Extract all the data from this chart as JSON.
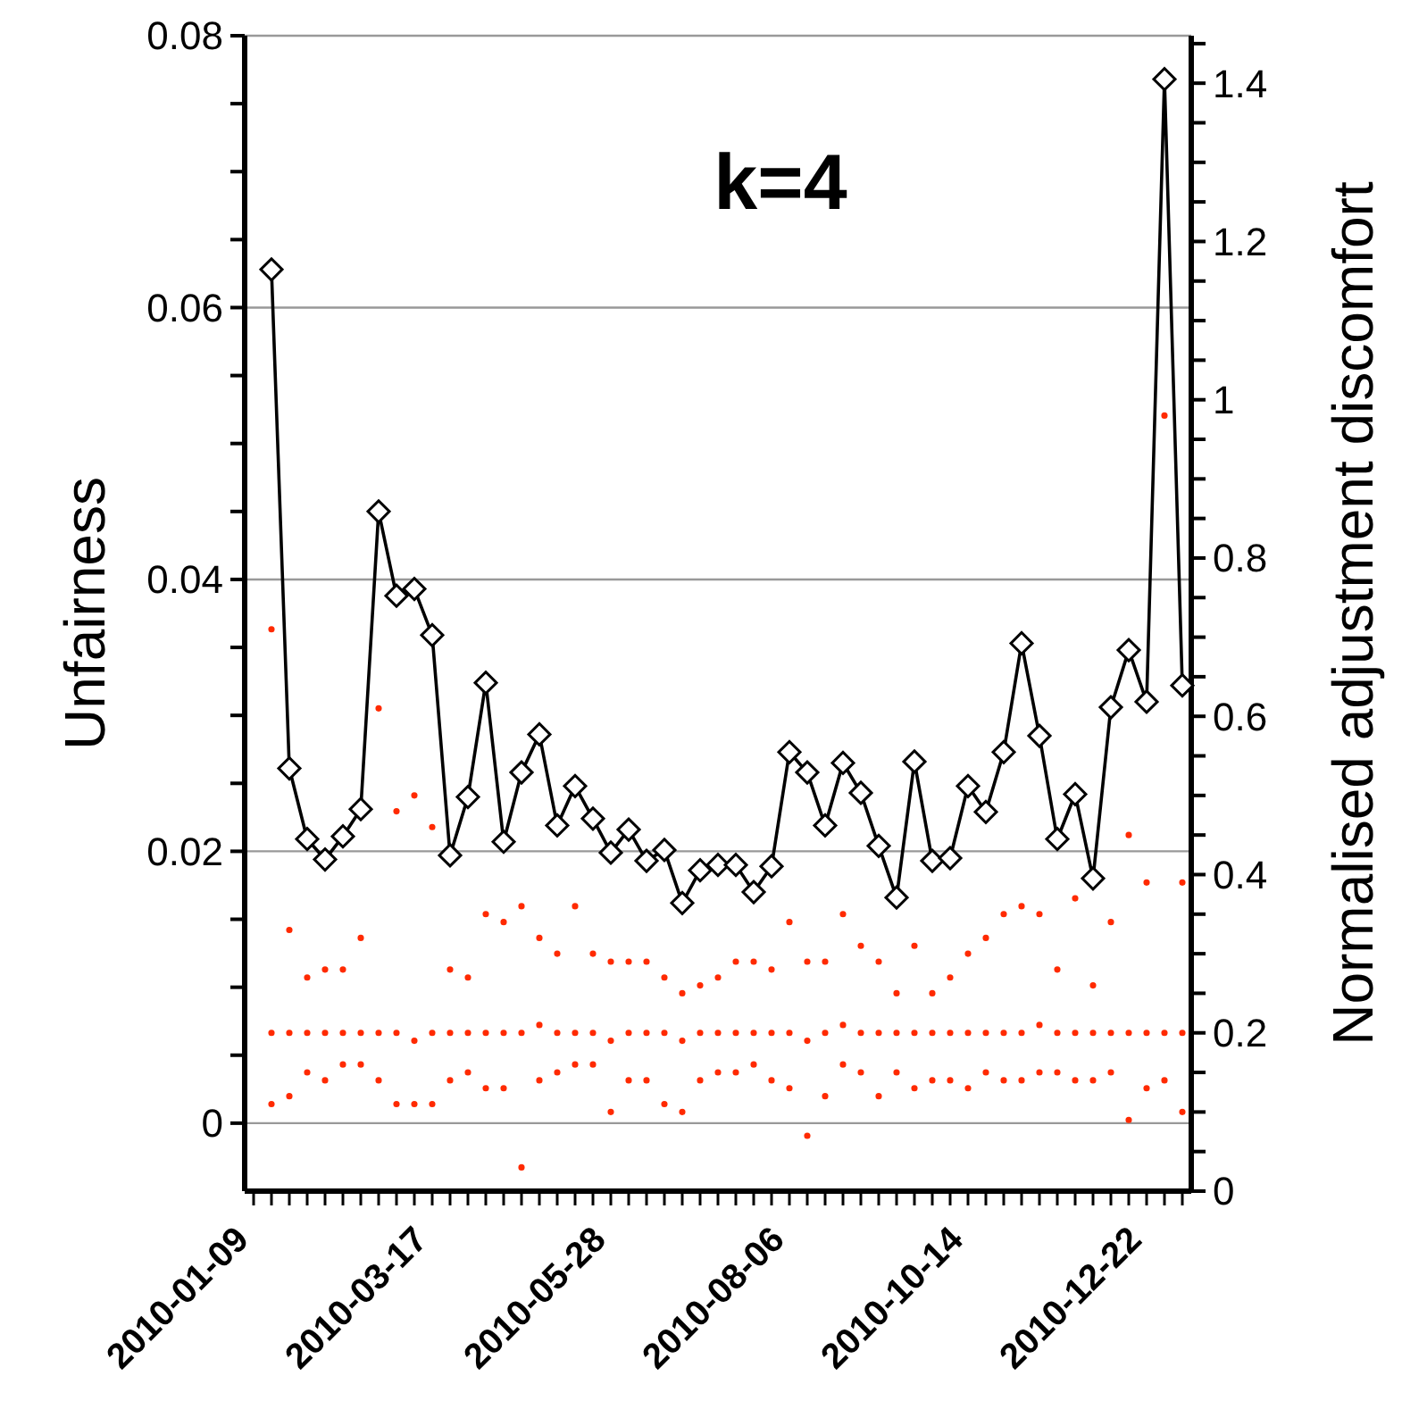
{
  "chart_data": {
    "type": "line",
    "title": "k=4",
    "ylabel": "Unfairness",
    "y2label": "Normalised adjustment discomfort",
    "grid": "y",
    "legend": false,
    "categories": [
      "2010-01-09",
      null,
      null,
      null,
      null,
      null,
      null,
      null,
      null,
      null,
      "2010-03-17",
      null,
      null,
      null,
      null,
      null,
      null,
      null,
      null,
      null,
      "2010-05-28",
      null,
      null,
      null,
      null,
      null,
      null,
      null,
      null,
      null,
      "2010-08-06",
      null,
      null,
      null,
      null,
      null,
      null,
      null,
      null,
      null,
      "2010-10-14",
      null,
      null,
      null,
      null,
      null,
      null,
      null,
      null,
      null,
      "2010-12-22",
      null,
      null
    ],
    "ylim": [
      -0.005,
      0.08
    ],
    "yticks": [
      0,
      {
        "value": 0.005,
        "label": null
      },
      {
        "value": 0.01,
        "label": null
      },
      {
        "value": 0.015,
        "label": null
      },
      0.02,
      {
        "value": 0.025,
        "label": null
      },
      {
        "value": 0.03,
        "label": null
      },
      {
        "value": 0.035,
        "label": null
      },
      0.04,
      {
        "value": 0.045,
        "label": null
      },
      {
        "value": 0.05,
        "label": null
      },
      {
        "value": 0.055,
        "label": null
      },
      0.06,
      {
        "value": 0.065,
        "label": null
      },
      {
        "value": 0.07,
        "label": null
      },
      {
        "value": 0.075,
        "label": null
      },
      0.08
    ],
    "y2lim": [
      0,
      1.46
    ],
    "y2ticks": [
      0,
      {
        "value": 0.05,
        "label": null
      },
      {
        "value": 0.1,
        "label": null
      },
      {
        "value": 0.15,
        "label": null
      },
      0.2,
      {
        "value": 0.25,
        "label": null
      },
      {
        "value": 0.3,
        "label": null
      },
      {
        "value": 0.35,
        "label": null
      },
      0.4,
      {
        "value": 0.45,
        "label": null
      },
      {
        "value": 0.5,
        "label": null
      },
      {
        "value": 0.55,
        "label": null
      },
      0.6,
      {
        "value": 0.65,
        "label": null
      },
      {
        "value": 0.7,
        "label": null
      },
      {
        "value": 0.75,
        "label": null
      },
      0.8,
      {
        "value": 0.85,
        "label": null
      },
      {
        "value": 0.9,
        "label": null
      },
      {
        "value": 0.95,
        "label": null
      },
      1,
      {
        "value": 1.05,
        "label": null
      },
      {
        "value": 1.1,
        "label": null
      },
      {
        "value": 1.15,
        "label": null
      },
      1.2,
      {
        "value": 1.25,
        "label": null
      },
      {
        "value": 1.3,
        "label": null
      },
      {
        "value": 1.35,
        "label": null
      },
      1.4,
      {
        "value": 1.45,
        "label": null
      }
    ],
    "series": [
      {
        "type": "scatter",
        "axis": "y2",
        "color": "#ff2a00",
        "marker": "circle",
        "values": [
          null,
          0.71,
          0.33,
          0.27,
          0.28,
          0.28,
          0.32,
          0.61,
          0.48,
          0.5,
          0.46,
          0.28,
          0.27,
          0.35,
          0.34,
          0.36,
          0.32,
          0.3,
          0.36,
          0.3,
          0.29,
          0.29,
          0.29,
          0.27,
          0.25,
          0.26,
          0.27,
          0.29,
          0.29,
          0.28,
          0.34,
          0.29,
          0.29,
          0.35,
          0.31,
          0.29,
          0.25,
          0.31,
          0.25,
          0.27,
          0.3,
          0.32,
          0.35,
          0.36,
          0.35,
          0.28,
          0.37,
          0.26,
          0.34,
          0.45,
          0.39,
          0.98,
          0.39
        ]
      },
      {
        "type": "scatter",
        "axis": "y2",
        "color": "#ff2a00",
        "marker": "circle",
        "values": [
          null,
          0.2,
          0.2,
          0.2,
          0.2,
          0.2,
          0.2,
          0.2,
          0.2,
          0.19,
          0.2,
          0.2,
          0.2,
          0.2,
          0.2,
          0.2,
          0.21,
          0.2,
          0.2,
          0.2,
          0.19,
          0.2,
          0.2,
          0.2,
          0.19,
          0.2,
          0.2,
          0.2,
          0.2,
          0.2,
          0.2,
          0.19,
          0.2,
          0.21,
          0.2,
          0.2,
          0.2,
          0.2,
          0.2,
          0.2,
          0.2,
          0.2,
          0.2,
          0.2,
          0.21,
          0.2,
          0.2,
          0.2,
          0.2,
          0.2,
          0.2,
          0.2,
          0.2
        ]
      },
      {
        "type": "scatter",
        "axis": "y2",
        "color": "#ff2a00",
        "marker": "circle",
        "values": [
          null,
          0.11,
          0.12,
          0.15,
          0.14,
          0.16,
          0.16,
          0.14,
          0.11,
          0.11,
          0.11,
          0.14,
          0.15,
          0.13,
          0.13,
          0.03,
          0.14,
          0.15,
          0.16,
          0.16,
          0.1,
          0.14,
          0.14,
          0.11,
          0.1,
          0.14,
          0.15,
          0.15,
          0.16,
          0.14,
          0.13,
          0.07,
          0.12,
          0.16,
          0.15,
          0.12,
          0.15,
          0.13,
          0.14,
          0.14,
          0.13,
          0.15,
          0.14,
          0.14,
          0.15,
          0.15,
          0.14,
          0.14,
          0.15,
          0.09,
          0.13,
          0.14,
          0.1
        ]
      },
      {
        "type": "line",
        "color": "#000000",
        "marker": "diamond",
        "values": [
          null,
          0.0628,
          0.0261,
          0.0209,
          0.0194,
          0.0211,
          0.0231,
          0.045,
          0.0388,
          0.0393,
          0.0359,
          0.0197,
          0.024,
          0.0324,
          0.0207,
          0.0258,
          0.0286,
          0.0219,
          0.0248,
          0.0224,
          0.0199,
          0.0216,
          0.0193,
          0.0201,
          0.0162,
          0.0186,
          0.019,
          0.019,
          0.017,
          0.0189,
          0.0273,
          0.0258,
          0.0219,
          0.0265,
          0.0243,
          0.0204,
          0.0166,
          0.0266,
          0.0193,
          0.0195,
          0.0248,
          0.0229,
          0.0273,
          0.0353,
          0.0285,
          0.0209,
          0.0242,
          0.018,
          0.0306,
          0.0348,
          0.031,
          0.0768,
          0.0322
        ]
      }
    ]
  }
}
